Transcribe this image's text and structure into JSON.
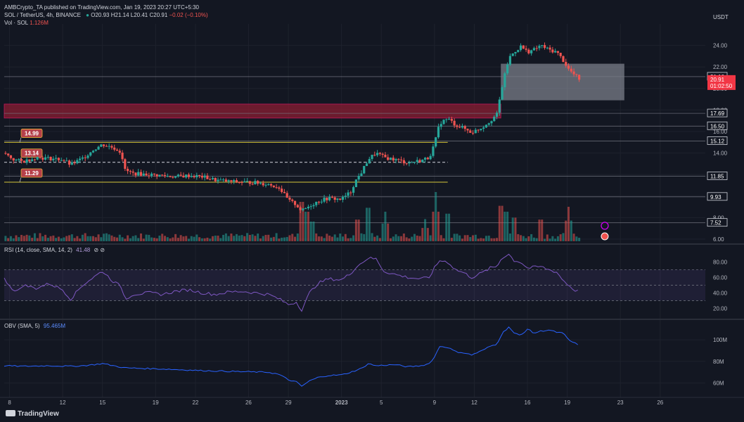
{
  "header": {
    "publisher_line": "AMBCrypto_TA published on TradingView.com, Jan 19, 2023 20:27 UTC+5:30",
    "symbol_line": "SOL / TetherUS, 4h, BINANCE",
    "ohlc": {
      "o": "O20.93",
      "h": "H21.14",
      "l": "L20.41",
      "c": "C20.91",
      "chg": "−0.02 (−0.10%)"
    },
    "volume_label": "Vol · SOL",
    "volume_value": "1.126M",
    "currency": "USDT"
  },
  "footer": {
    "brand": "TradingView"
  },
  "colors": {
    "background": "#131722",
    "up": "#26a69a",
    "down": "#ef5350",
    "rsi": "#7e57c2",
    "obv": "#2962ff",
    "yellow_level": "#d4c53a",
    "resistance_zone": "#8b1e33",
    "supply_box": "#9ea3ad"
  },
  "chart_data": [
    {
      "type": "candlestick",
      "pane": "price",
      "ylim": [
        5.8,
        26.0
      ],
      "axis_ticks": [
        "24.00",
        "22.00",
        "20.00",
        "18.00",
        "16.00",
        "14.00",
        "12.00",
        "10.00",
        "8.00",
        "6.00"
      ],
      "axis_tick_values": [
        24,
        22,
        20,
        18,
        16,
        14,
        12,
        10,
        8,
        6
      ],
      "x_ticks": [
        "8",
        "12",
        "15",
        "19",
        "22",
        "26",
        "29",
        "2023",
        "5",
        "9",
        "12",
        "16",
        "19",
        "23",
        "26"
      ],
      "x_tick_days": [
        8,
        12,
        15,
        19,
        22,
        26,
        29,
        33,
        36,
        40,
        43,
        47,
        50,
        54,
        57
      ],
      "x_range_days": [
        7.6,
        60.4
      ],
      "waypoints": [
        [
          7.6,
          14.0
        ],
        [
          8.3,
          13.4
        ],
        [
          9,
          13.2
        ],
        [
          10,
          13.6
        ],
        [
          11,
          13.5
        ],
        [
          12,
          13.4
        ],
        [
          12.6,
          12.9
        ],
        [
          13.5,
          13.5
        ],
        [
          14.3,
          14.3
        ],
        [
          15,
          14.8
        ],
        [
          15.8,
          14.5
        ],
        [
          16.4,
          14.1
        ],
        [
          16.7,
          12.4
        ],
        [
          17.3,
          12.1
        ],
        [
          18.5,
          12.0
        ],
        [
          19.5,
          11.9
        ],
        [
          20.5,
          11.8
        ],
        [
          21.5,
          11.9
        ],
        [
          22.5,
          11.8
        ],
        [
          23.5,
          11.5
        ],
        [
          24.5,
          11.35
        ],
        [
          25.5,
          11.3
        ],
        [
          26.5,
          11.25
        ],
        [
          27.5,
          11.1
        ],
        [
          28.3,
          10.8
        ],
        [
          29.0,
          9.6
        ],
        [
          29.6,
          9.2
        ],
        [
          30.0,
          8.6
        ],
        [
          30.6,
          9.1
        ],
        [
          31.2,
          9.5
        ],
        [
          32,
          9.8
        ],
        [
          33,
          9.7
        ],
        [
          33.7,
          10.4
        ],
        [
          34.0,
          11.3
        ],
        [
          34.6,
          12.4
        ],
        [
          35.0,
          13.4
        ],
        [
          35.6,
          14.0
        ],
        [
          36.2,
          13.6
        ],
        [
          37,
          13.4
        ],
        [
          38,
          13.1
        ],
        [
          39,
          13.3
        ],
        [
          39.6,
          13.6
        ],
        [
          40.0,
          14.8
        ],
        [
          40.4,
          16.8
        ],
        [
          41,
          17.2
        ],
        [
          41.6,
          16.6
        ],
        [
          42.2,
          16.3
        ],
        [
          42.8,
          15.9
        ],
        [
          43.6,
          16.4
        ],
        [
          44.2,
          17.0
        ],
        [
          44.7,
          17.6
        ],
        [
          45.1,
          20.2
        ],
        [
          45.6,
          22.8
        ],
        [
          46,
          23.4
        ],
        [
          46.5,
          23.9
        ],
        [
          47,
          23.4
        ],
        [
          47.5,
          23.6
        ],
        [
          48,
          24.0
        ],
        [
          48.6,
          23.6
        ],
        [
          49.2,
          23.4
        ],
        [
          49.7,
          22.6
        ],
        [
          50.1,
          21.8
        ],
        [
          50.5,
          21.3
        ],
        [
          50.9,
          20.9
        ]
      ],
      "zones": [
        {
          "name": "resistance-zone",
          "x_from": 7.6,
          "x_to": 45.0,
          "y_from": 17.25,
          "y_to": 18.55
        },
        {
          "name": "supply-box",
          "x_from": 45.0,
          "x_to": 54.3,
          "y_from": 18.9,
          "y_to": 22.3
        }
      ],
      "support_lines": [
        {
          "name": "level-14-99",
          "label": "14.99",
          "value": 14.99,
          "x_from": 7.6,
          "x_to": 41.0,
          "style": "solid"
        },
        {
          "name": "level-13-14",
          "label": "13.14",
          "value": 13.14,
          "x_from": 7.6,
          "x_to": 41.0,
          "style": "dashed"
        },
        {
          "name": "level-11-29",
          "label": "11.29",
          "value": 11.29,
          "x_from": 7.6,
          "x_to": 41.0,
          "style": "solid"
        }
      ],
      "right_levels": [
        {
          "label": "21.10",
          "value": 21.1,
          "style": "plain",
          "draw_line": true
        },
        {
          "label": "20.91",
          "sub": "01:02:50",
          "value": 20.91,
          "style": "current",
          "draw_line": false
        },
        {
          "label": "17.69",
          "value": 17.69,
          "style": "plain",
          "draw_line": true
        },
        {
          "label": "16.50",
          "value": 16.5,
          "style": "plain",
          "draw_line": true
        },
        {
          "label": "15.12",
          "value": 15.12,
          "style": "plain",
          "draw_line": true
        },
        {
          "label": "11.85",
          "value": 11.85,
          "style": "plain",
          "draw_line": true
        },
        {
          "label": "9.93",
          "value": 9.93,
          "style": "plain",
          "draw_line": true
        },
        {
          "label": "7.52",
          "value": 7.52,
          "style": "plain",
          "draw_line": true
        }
      ]
    },
    {
      "type": "bar",
      "pane": "volume",
      "overlay_on": "price",
      "note": "relative volume heights, 0-1 scale",
      "spikes": [
        [
          30.0,
          1.0
        ],
        [
          30.4,
          0.75
        ],
        [
          34.2,
          0.55
        ],
        [
          35.0,
          0.85
        ],
        [
          36.3,
          0.6
        ],
        [
          40.1,
          1.0
        ],
        [
          41.0,
          0.7
        ],
        [
          45.0,
          0.9
        ],
        [
          45.4,
          0.75
        ],
        [
          46.0,
          0.6
        ],
        [
          50.1,
          0.7
        ],
        [
          30.8,
          0.5
        ],
        [
          39.3,
          0.45
        ],
        [
          48.0,
          0.55
        ]
      ]
    },
    {
      "type": "line",
      "pane": "rsi",
      "title": "RSI (14, close, SMA, 14, 2)",
      "value_label": "41.48",
      "status_glyphs": "⊘ ⊘",
      "ylim": [
        13,
        95
      ],
      "axis_ticks": [
        "80.00",
        "60.00",
        "40.00",
        "20.00"
      ],
      "axis_tick_values": [
        80,
        60,
        40,
        20
      ],
      "band": [
        30,
        70
      ],
      "midline": 50,
      "waypoints": [
        [
          7.6,
          58
        ],
        [
          8.5,
          40
        ],
        [
          9,
          50
        ],
        [
          10,
          46
        ],
        [
          11,
          52
        ],
        [
          12,
          44
        ],
        [
          12.6,
          32
        ],
        [
          13.5,
          50
        ],
        [
          14.3,
          60
        ],
        [
          15,
          68
        ],
        [
          15.8,
          55
        ],
        [
          16.4,
          48
        ],
        [
          16.7,
          32
        ],
        [
          17.3,
          38
        ],
        [
          18.5,
          40
        ],
        [
          19.5,
          38
        ],
        [
          20.5,
          42
        ],
        [
          21.5,
          44
        ],
        [
          22.5,
          40
        ],
        [
          23.5,
          38
        ],
        [
          24.5,
          41
        ],
        [
          25.5,
          42
        ],
        [
          26.5,
          40
        ],
        [
          27.5,
          38
        ],
        [
          28.3,
          32
        ],
        [
          29.0,
          25
        ],
        [
          29.6,
          28
        ],
        [
          30.0,
          18
        ],
        [
          30.6,
          40
        ],
        [
          31.2,
          52
        ],
        [
          32,
          58
        ],
        [
          33,
          57
        ],
        [
          33.7,
          65
        ],
        [
          34.0,
          72
        ],
        [
          34.6,
          80
        ],
        [
          35.0,
          85
        ],
        [
          35.6,
          84
        ],
        [
          36.2,
          68
        ],
        [
          37,
          64
        ],
        [
          38,
          60
        ],
        [
          39,
          58
        ],
        [
          39.6,
          60
        ],
        [
          40.0,
          72
        ],
        [
          40.4,
          82
        ],
        [
          41,
          80
        ],
        [
          41.6,
          70
        ],
        [
          42.2,
          66
        ],
        [
          42.8,
          60
        ],
        [
          43.6,
          66
        ],
        [
          44.2,
          72
        ],
        [
          44.7,
          74
        ],
        [
          45.1,
          86
        ],
        [
          45.6,
          90
        ],
        [
          46,
          82
        ],
        [
          46.5,
          80
        ],
        [
          47,
          72
        ],
        [
          47.5,
          73
        ],
        [
          48,
          74
        ],
        [
          48.6,
          70
        ],
        [
          49.2,
          67
        ],
        [
          49.7,
          56
        ],
        [
          50.1,
          50
        ],
        [
          50.5,
          44
        ],
        [
          50.9,
          41.48
        ]
      ]
    },
    {
      "type": "line",
      "pane": "obv",
      "title": "OBV (SMA, 5)",
      "value_label": "95.465M",
      "ylim": [
        50,
        115
      ],
      "axis_ticks": [
        "100M",
        "80M",
        "60M"
      ],
      "axis_tick_values": [
        100,
        80,
        60
      ],
      "waypoints": [
        [
          7.6,
          76
        ],
        [
          9,
          75.5
        ],
        [
          11,
          76
        ],
        [
          12.6,
          75.5
        ],
        [
          13.5,
          76
        ],
        [
          14.3,
          77
        ],
        [
          15,
          78
        ],
        [
          16.7,
          74
        ],
        [
          19.5,
          73
        ],
        [
          22.5,
          71.5
        ],
        [
          25.5,
          70.5
        ],
        [
          27.5,
          70
        ],
        [
          28.3,
          68
        ],
        [
          29.0,
          63
        ],
        [
          29.6,
          61
        ],
        [
          30.0,
          57
        ],
        [
          30.6,
          62
        ],
        [
          31.2,
          65
        ],
        [
          32,
          67
        ],
        [
          33,
          67.5
        ],
        [
          33.7,
          70
        ],
        [
          34.6,
          74
        ],
        [
          35.0,
          78
        ],
        [
          35.6,
          76
        ],
        [
          37,
          77
        ],
        [
          38,
          75
        ],
        [
          39,
          76
        ],
        [
          39.6,
          78
        ],
        [
          40.0,
          84
        ],
        [
          40.4,
          94
        ],
        [
          41,
          93
        ],
        [
          41.6,
          89
        ],
        [
          42.2,
          88
        ],
        [
          42.8,
          86
        ],
        [
          43.6,
          90
        ],
        [
          44.2,
          94
        ],
        [
          44.7,
          96
        ],
        [
          45.1,
          106
        ],
        [
          45.6,
          112
        ],
        [
          46,
          106
        ],
        [
          46.5,
          104
        ],
        [
          47,
          110
        ],
        [
          47.5,
          106
        ],
        [
          48,
          108
        ],
        [
          48.6,
          109
        ],
        [
          49.2,
          107
        ],
        [
          49.7,
          106
        ],
        [
          50.1,
          100
        ],
        [
          50.5,
          97
        ],
        [
          50.9,
          95.5
        ]
      ]
    }
  ]
}
